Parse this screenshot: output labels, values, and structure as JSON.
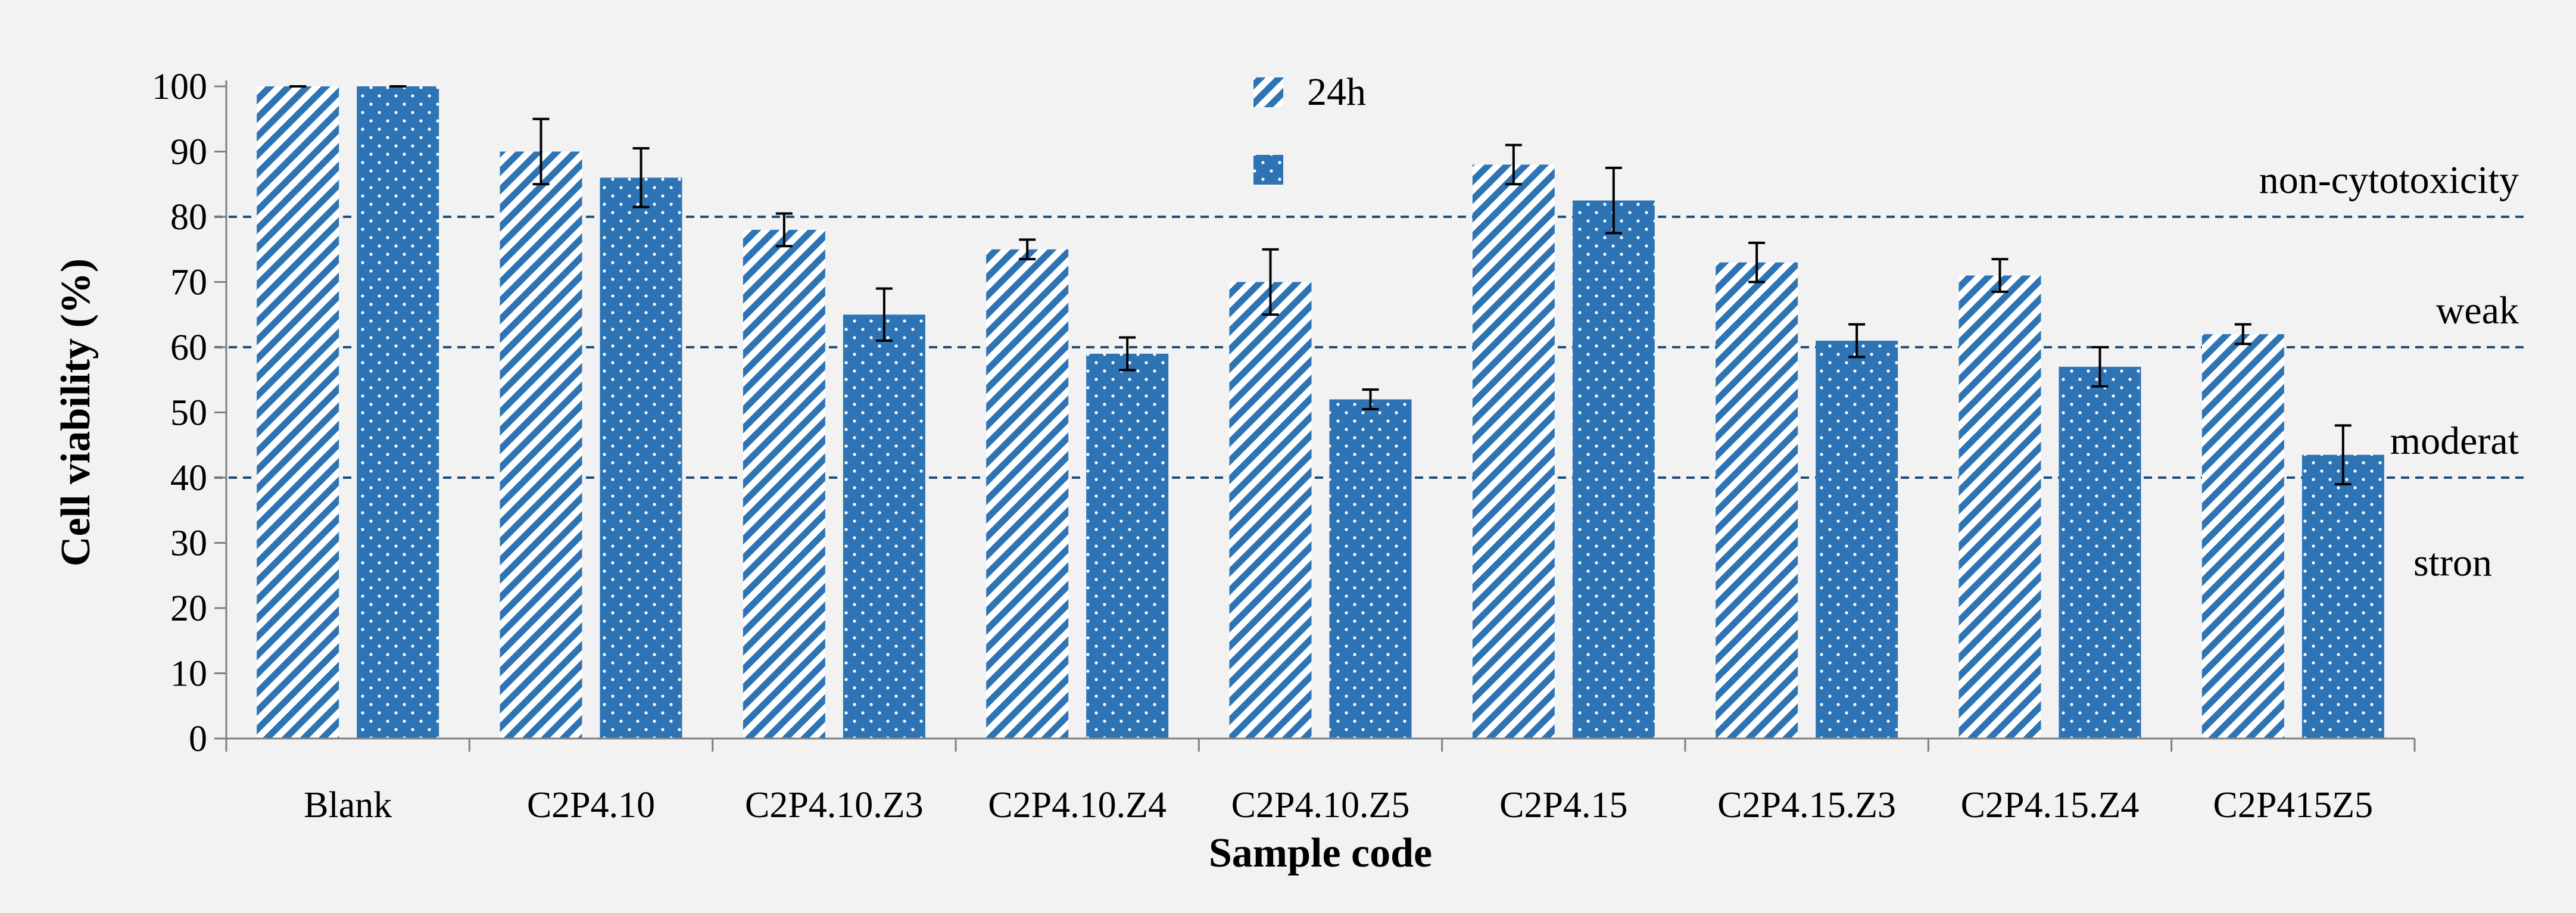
{
  "chart_data": {
    "type": "bar",
    "title": "",
    "xlabel": "Sample code",
    "ylabel": "Cell viability (%)",
    "ylim": [
      0,
      100
    ],
    "yticks": [
      0,
      10,
      20,
      30,
      40,
      50,
      60,
      70,
      80,
      90,
      100
    ],
    "grid": false,
    "categories": [
      "Blank",
      "C2P4.10",
      "C2P4.10.Z3",
      "C2P4.10.Z4",
      "C2P4.10.Z5",
      "C2P4.15",
      "C2P4.15.Z3",
      "C2P4.15.Z4",
      "C2P415Z5"
    ],
    "series": [
      {
        "name": "24h",
        "pattern": "diagonal-stripes",
        "values": [
          100,
          90,
          78,
          75,
          70,
          88,
          73,
          71,
          62
        ],
        "errors": [
          0,
          5,
          2.5,
          1.5,
          5,
          3,
          3,
          2.5,
          1.5
        ]
      },
      {
        "name": "",
        "pattern": "dotted",
        "values": [
          100,
          86,
          65,
          59,
          52,
          82.5,
          61,
          57,
          43.5
        ],
        "errors": [
          0,
          4.5,
          4,
          2.5,
          1.5,
          5,
          2.5,
          3,
          4.5
        ]
      }
    ],
    "legend_position": "top-center",
    "thresholds": [
      {
        "value": 80,
        "label": "non-cytotoxicity",
        "label_color": "#000000"
      },
      {
        "value": 60,
        "label": "weak",
        "label_color": "#000000"
      },
      {
        "value": 40,
        "label": "moderat",
        "label_color": "#000000"
      }
    ],
    "bottom_zone_label": {
      "label": "stron",
      "label_color": "#c00000"
    },
    "colors": {
      "bar": "#2e74b5",
      "bar_light": "#ffffff",
      "threshold_line": "#1f4e79",
      "axis": "#808080",
      "error_bar": "#000000",
      "background": "#f2f2f2"
    }
  }
}
